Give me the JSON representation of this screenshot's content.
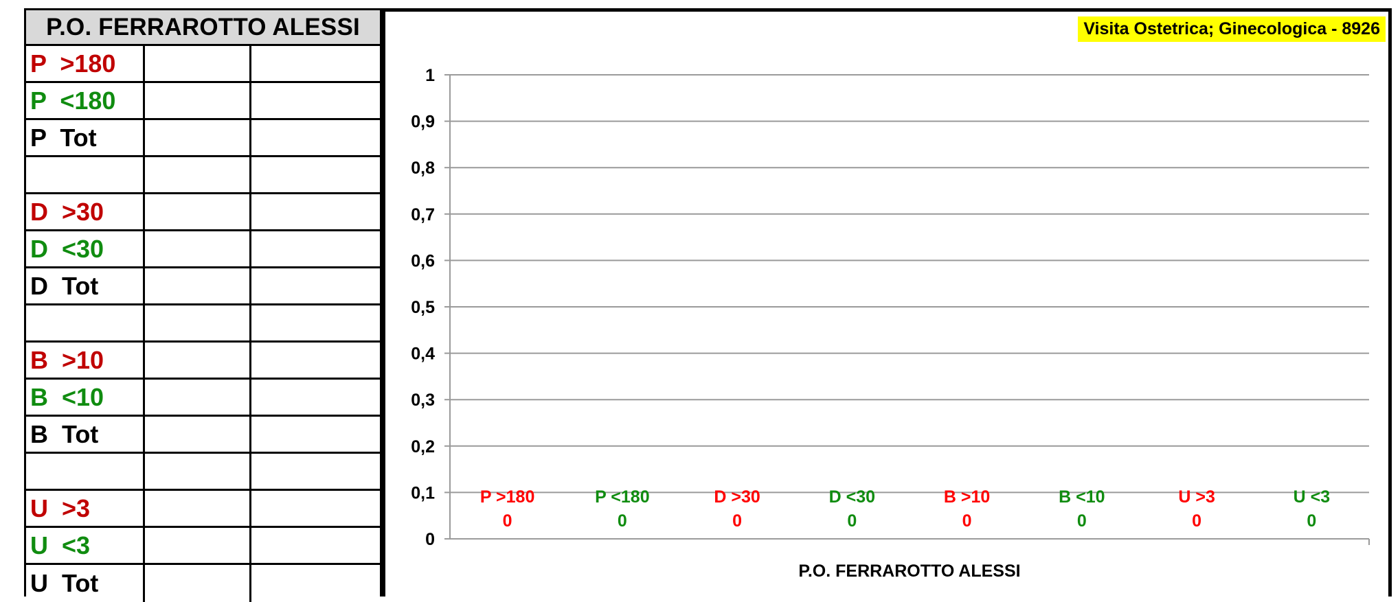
{
  "table": {
    "title": "P.O. FERRAROTTO ALESSI",
    "rows": [
      {
        "label": "P  >180",
        "color": "#c00000"
      },
      {
        "label": "P  <180",
        "color": "#108c10"
      },
      {
        "label": "P  Tot",
        "color": "#000000"
      },
      {
        "label": "",
        "color": "#000000"
      },
      {
        "label": "D  >30",
        "color": "#c00000"
      },
      {
        "label": "D  <30",
        "color": "#108c10"
      },
      {
        "label": "D  Tot",
        "color": "#000000"
      },
      {
        "label": "",
        "color": "#000000"
      },
      {
        "label": "B  >10",
        "color": "#c00000"
      },
      {
        "label": "B  <10",
        "color": "#108c10"
      },
      {
        "label": "B  Tot",
        "color": "#000000"
      },
      {
        "label": "",
        "color": "#000000"
      },
      {
        "label": "U  >3",
        "color": "#c00000"
      },
      {
        "label": "U  <3",
        "color": "#108c10"
      },
      {
        "label": "U  Tot",
        "color": "#000000"
      }
    ]
  },
  "chart_data": {
    "type": "bar",
    "legend": "Visita Ostetrica; Ginecologica - 8926",
    "legend_color": "#ffff00",
    "legend_position": "top-right",
    "xlabel": "P.O. FERRAROTTO ALESSI",
    "ylim": [
      0,
      1
    ],
    "yticks": [
      "0",
      "0,1",
      "0,2",
      "0,3",
      "0,4",
      "0,5",
      "0,6",
      "0,7",
      "0,8",
      "0,9",
      "1"
    ],
    "grid": true,
    "categories": [
      "P  >180",
      "P  <180",
      "D  >30",
      "D  <30",
      "B  >10",
      "B  <10",
      "U  >3",
      "U  <3"
    ],
    "category_colors": [
      "#ff0000",
      "#108c10",
      "#ff0000",
      "#108c10",
      "#ff0000",
      "#108c10",
      "#ff0000",
      "#108c10"
    ],
    "values": [
      0,
      0,
      0,
      0,
      0,
      0,
      0,
      0
    ]
  }
}
